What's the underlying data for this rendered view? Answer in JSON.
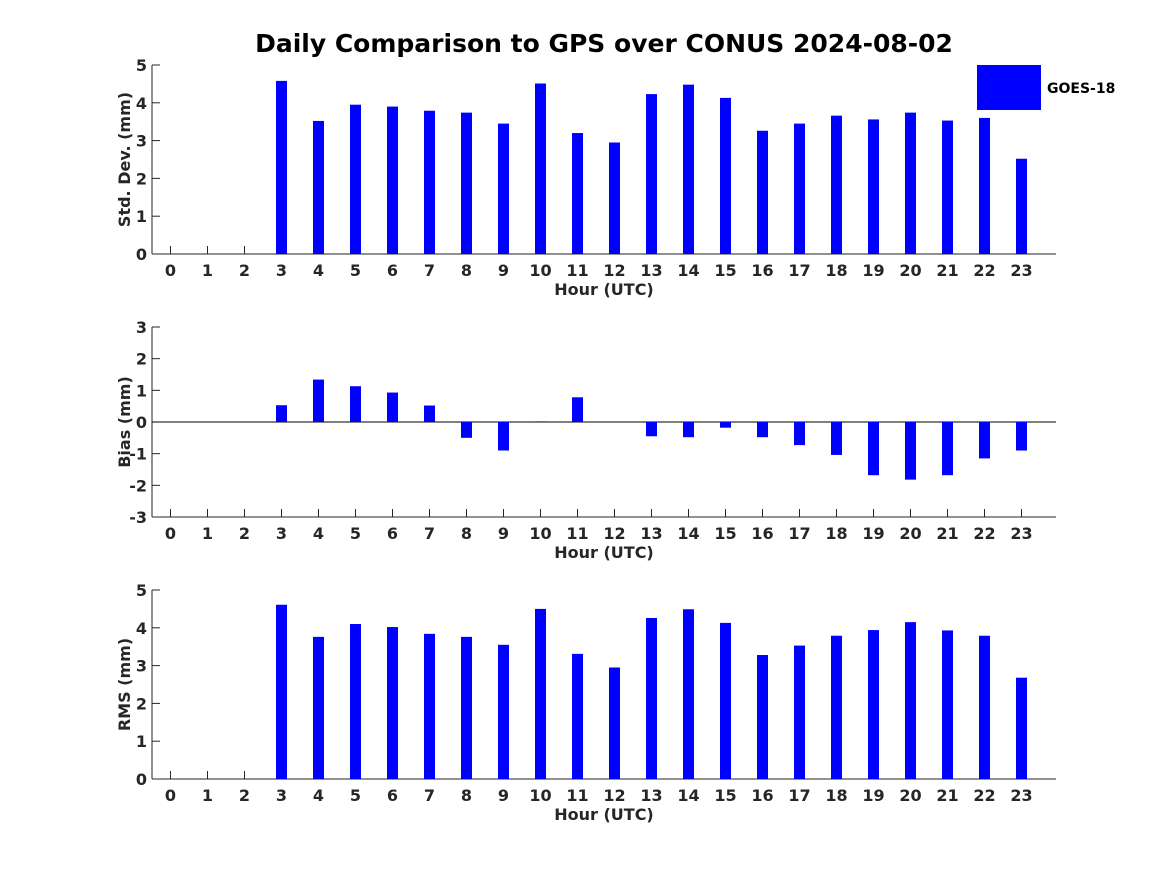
{
  "title": "Daily Comparison to GPS over CONUS 2024-08-02",
  "legend": {
    "label": "GOES-18",
    "color": "#0000ff"
  },
  "chart_data": [
    {
      "type": "bar",
      "id": "std",
      "title": "Daily Comparison to GPS over CONUS 2024-08-02",
      "xlabel": "Hour (UTC)",
      "ylabel": "Std. Dev. (mm)",
      "categories": [
        "0",
        "1",
        "2",
        "3",
        "4",
        "5",
        "6",
        "7",
        "8",
        "9",
        "10",
        "11",
        "12",
        "13",
        "14",
        "15",
        "16",
        "17",
        "18",
        "19",
        "20",
        "21",
        "22",
        "23"
      ],
      "yticks": [
        "0",
        "1",
        "2",
        "3",
        "4",
        "5"
      ],
      "ylim": [
        0,
        5
      ],
      "series": [
        {
          "name": "GOES-18",
          "values": [
            null,
            null,
            null,
            4.58,
            3.52,
            3.95,
            3.9,
            3.79,
            3.74,
            3.45,
            4.51,
            3.2,
            2.95,
            4.23,
            4.48,
            4.13,
            3.26,
            3.45,
            3.66,
            3.56,
            3.74,
            3.53,
            3.6,
            2.52
          ]
        }
      ]
    },
    {
      "type": "bar",
      "id": "bias",
      "xlabel": "Hour (UTC)",
      "ylabel": "Bias (mm)",
      "categories": [
        "0",
        "1",
        "2",
        "3",
        "4",
        "5",
        "6",
        "7",
        "8",
        "9",
        "10",
        "11",
        "12",
        "13",
        "14",
        "15",
        "16",
        "17",
        "18",
        "19",
        "20",
        "21",
        "22",
        "23"
      ],
      "yticks": [
        "-3",
        "-2",
        "-1",
        "0",
        "1",
        "2",
        "3"
      ],
      "ylim": [
        -3,
        3
      ],
      "series": [
        {
          "name": "GOES-18",
          "values": [
            null,
            null,
            null,
            0.53,
            1.34,
            1.13,
            0.93,
            0.52,
            -0.5,
            -0.9,
            0.02,
            0.78,
            0.0,
            -0.45,
            -0.48,
            -0.18,
            -0.48,
            -0.73,
            -1.04,
            -1.68,
            -1.82,
            -1.68,
            -1.15,
            -0.9
          ]
        }
      ]
    },
    {
      "type": "bar",
      "id": "rms",
      "xlabel": "Hour (UTC)",
      "ylabel": "RMS (mm)",
      "categories": [
        "0",
        "1",
        "2",
        "3",
        "4",
        "5",
        "6",
        "7",
        "8",
        "9",
        "10",
        "11",
        "12",
        "13",
        "14",
        "15",
        "16",
        "17",
        "18",
        "19",
        "20",
        "21",
        "22",
        "23"
      ],
      "yticks": [
        "0",
        "1",
        "2",
        "3",
        "4",
        "5"
      ],
      "ylim": [
        0,
        5
      ],
      "series": [
        {
          "name": "GOES-18",
          "values": [
            null,
            null,
            null,
            4.61,
            3.76,
            4.1,
            4.02,
            3.84,
            3.76,
            3.55,
            4.5,
            3.31,
            2.95,
            4.26,
            4.49,
            4.13,
            3.28,
            3.53,
            3.79,
            3.94,
            4.15,
            3.93,
            3.79,
            2.68
          ]
        }
      ]
    }
  ]
}
